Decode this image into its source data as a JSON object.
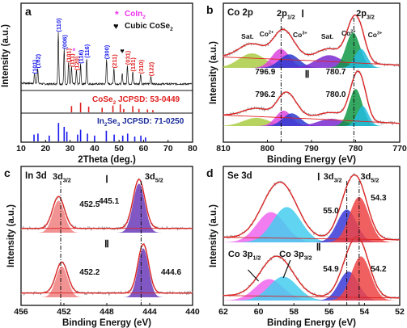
{
  "colors": {
    "black": "#111111",
    "red": "#e02020",
    "blue": "#1a1aee",
    "magenta": "#ee33ee",
    "navy": "#1a2a9a",
    "bg_line": "#e02020",
    "fit_green": "#aacc44",
    "fit_magenta": "#dd44dd",
    "fit_blue": "#2a3ad0",
    "fit_green_dark": "#119944",
    "fit_cyan": "#22bbdd",
    "fit_violet": "#7a2ad0",
    "fit_pink": "#f08080",
    "fit_purple": "#6a3ab8",
    "fit_lightcyan": "#44ccee",
    "fit_lightmagenta": "#ee66ee",
    "fit_blue2": "#3a3ad8",
    "fit_red2": "#ee4444",
    "data_gray": "#999999"
  },
  "chart_data": [
    {
      "id": "a",
      "panel_label": "a",
      "type": "line",
      "xlabel": "2Theta (deg.)",
      "ylabel": "Intensity (a.u.)",
      "xlim": [
        10,
        80
      ],
      "xticks": [
        10,
        20,
        30,
        40,
        50,
        60,
        70,
        80
      ],
      "legend": [
        {
          "marker": "*",
          "text": "CoIn",
          "sub": "2",
          "color": "magenta"
        },
        {
          "marker": "♥",
          "text": "Cubic CoSe",
          "sub": "2",
          "color": "black"
        }
      ],
      "peaks": [
        {
          "x": 15.5,
          "h": 0.18,
          "label": "(101)",
          "color": "blue"
        },
        {
          "x": 16.8,
          "h": 0.28,
          "label": "(102)",
          "color": "blue"
        },
        {
          "x": 25.2,
          "h": 0.92,
          "label": "(110)",
          "color": "blue"
        },
        {
          "x": 27.6,
          "h": 0.62,
          "label": "(006)",
          "color": "blue"
        },
        {
          "x": 29.4,
          "h": 0.38,
          "label": "(101)",
          "color": "red"
        },
        {
          "x": 30.6,
          "h": 0.3,
          "label": "(111)",
          "color": "red"
        },
        {
          "x": 32.6,
          "h": 0.24,
          "label": "(120)",
          "color": "red"
        },
        {
          "x": 34.3,
          "h": 0.36,
          "label": "(116)",
          "color": "blue"
        },
        {
          "x": 36.8,
          "h": 0.46,
          "label": "(116)",
          "color": "blue"
        },
        {
          "x": 44.9,
          "h": 0.44,
          "label": "(300)",
          "color": "blue"
        },
        {
          "x": 47.9,
          "h": 0.28,
          "label": "(211)",
          "color": "red"
        },
        {
          "x": 51.3,
          "h": 0.18,
          "label": "",
          "color": "black"
        },
        {
          "x": 53.4,
          "h": 0.34,
          "label": "(031)",
          "color": "red"
        },
        {
          "x": 55.6,
          "h": 0.22,
          "label": "(131)",
          "color": "red"
        },
        {
          "x": 58.8,
          "h": 0.18,
          "label": "(310)",
          "color": "red"
        },
        {
          "x": 63.0,
          "h": 0.14,
          "label": "(122)",
          "color": "red"
        }
      ],
      "markers": [
        {
          "x": 31.6,
          "symbol": "*",
          "color": "magenta"
        },
        {
          "x": 51.3,
          "symbol": "♥",
          "color": "black"
        }
      ],
      "ref_red": {
        "label": "CoSe",
        "sub": "2",
        "tail": " JCPSD: 53-0449",
        "lines": [
          [
            30.6,
            0.55
          ],
          [
            34.3,
            0.85
          ],
          [
            37.6,
            0.5
          ],
          [
            43.1,
            0.4
          ],
          [
            47.5,
            0.6
          ],
          [
            50.5,
            0.7
          ],
          [
            51.9,
            0.3
          ],
          [
            55.6,
            0.55
          ],
          [
            58.1,
            0.3
          ],
          [
            61.6,
            0.25
          ],
          [
            63.8,
            0.2
          ]
        ]
      },
      "ref_blue": {
        "label": "In",
        "sub": "2",
        "mid": "Se",
        "sub2": "3",
        "tail": " JCPSD: 71-0250",
        "lines": [
          [
            15.3,
            0.35
          ],
          [
            16.9,
            0.4
          ],
          [
            21.5,
            0.3
          ],
          [
            25.3,
            0.95
          ],
          [
            27.6,
            0.75
          ],
          [
            28.7,
            0.5
          ],
          [
            33.1,
            0.35
          ],
          [
            34.3,
            0.6
          ],
          [
            37.1,
            0.4
          ],
          [
            40.0,
            0.3
          ],
          [
            44.8,
            0.55
          ],
          [
            48.0,
            0.35
          ],
          [
            51.5,
            0.3
          ],
          [
            53.5,
            0.4
          ],
          [
            56.4,
            0.25
          ],
          [
            58.9,
            0.3
          ],
          [
            60.8,
            0.2
          ]
        ]
      }
    },
    {
      "id": "b",
      "panel_label": "b",
      "title": "Co 2p",
      "type": "line",
      "xlabel": "Binding Energy (eV)",
      "ylabel": "Intensity (a.u.)",
      "xlim": [
        810,
        770
      ],
      "xticks": [
        810,
        800,
        790,
        780,
        770
      ],
      "labels_top": [
        {
          "text": "Ⅰ",
          "x": 792
        },
        {
          "text": "2p",
          "sub": "1/2",
          "x": 795.8
        },
        {
          "text": "2p",
          "sub": "3/2",
          "x": 777.8
        }
      ],
      "species_labels": [
        {
          "text": "Sat.",
          "x": 804.5,
          "level": 0
        },
        {
          "text": "Co",
          "sup": "2+",
          "x": 800.2,
          "level": 0.3
        },
        {
          "text": "Co",
          "sup": "3+",
          "x": 792.6,
          "level": 0.2
        },
        {
          "text": "Sat.",
          "x": 786.4,
          "level": 0
        },
        {
          "text": "Co",
          "sup": "2+",
          "x": 781.6,
          "level": 0.4
        },
        {
          "text": "Co",
          "sup": "3+",
          "x": 775.6,
          "level": 0.2
        }
      ],
      "upper": {
        "peak_labels": [
          {
            "text": "796.9",
            "x": 796.9
          },
          {
            "text": "780.7",
            "x": 780.7
          }
        ],
        "components": [
          {
            "center": 803.5,
            "height": 0.32,
            "width": 3.0,
            "color": "fit_green"
          },
          {
            "center": 797.0,
            "height": 0.42,
            "width": 2.0,
            "color": "fit_magenta"
          },
          {
            "center": 795.0,
            "height": 0.3,
            "width": 2.2,
            "color": "fit_blue"
          },
          {
            "center": 786.0,
            "height": 0.28,
            "width": 3.0,
            "color": "fit_violet"
          },
          {
            "center": 780.6,
            "height": 0.78,
            "width": 1.6,
            "color": "fit_green_dark"
          },
          {
            "center": 778.8,
            "height": 0.42,
            "width": 1.4,
            "color": "fit_cyan"
          }
        ]
      },
      "lower": {
        "label": "Ⅱ",
        "peak_labels": [
          {
            "text": "796.2",
            "x": 796.2
          },
          {
            "text": "780.0",
            "x": 780.0
          }
        ],
        "components": [
          {
            "center": 802.5,
            "height": 0.18,
            "width": 3.0,
            "color": "fit_green"
          },
          {
            "center": 796.3,
            "height": 0.34,
            "width": 1.8,
            "color": "fit_magenta"
          },
          {
            "center": 794.5,
            "height": 0.28,
            "width": 2.0,
            "color": "fit_blue"
          },
          {
            "center": 785.5,
            "height": 0.16,
            "width": 3.0,
            "color": "fit_violet"
          },
          {
            "center": 780.0,
            "height": 0.82,
            "width": 1.5,
            "color": "fit_green_dark"
          },
          {
            "center": 778.4,
            "height": 0.44,
            "width": 1.3,
            "color": "fit_cyan"
          }
        ]
      },
      "dash_x": [
        796.9,
        780.4
      ]
    },
    {
      "id": "c",
      "panel_label": "c",
      "title": "In 3d",
      "type": "line",
      "xlabel": "Binding Energy (eV)",
      "ylabel": "Intensity (a.u.)",
      "xlim": [
        456,
        440
      ],
      "xticks": [
        456,
        452,
        448,
        444,
        440
      ],
      "labels_top": [
        {
          "text": "3d",
          "sub": "3/2",
          "x": 452.2
        },
        {
          "text": "3d",
          "sub": "5/2",
          "x": 443.6
        }
      ],
      "upper": {
        "label": "Ⅰ",
        "peak_labels": [
          {
            "text": "452.5",
            "x": 452.5
          },
          {
            "text": "445.1",
            "x": 445.1
          }
        ],
        "components": [
          {
            "center": 452.5,
            "height": 0.6,
            "width": 0.55,
            "color": "fit_pink"
          },
          {
            "center": 445.0,
            "height": 0.92,
            "width": 0.55,
            "color": "fit_purple"
          }
        ]
      },
      "lower": {
        "label": "Ⅱ",
        "peak_labels": [
          {
            "text": "452.2",
            "x": 452.2
          },
          {
            "text": "444.6",
            "x": 444.6
          }
        ],
        "components": [
          {
            "center": 452.2,
            "height": 0.58,
            "width": 0.55,
            "color": "fit_pink"
          },
          {
            "center": 444.6,
            "height": 0.92,
            "width": 0.5,
            "color": "fit_purple"
          }
        ]
      },
      "dash_x": [
        452.3,
        444.8
      ]
    },
    {
      "id": "d",
      "panel_label": "d",
      "title": "Se 3d",
      "type": "line",
      "xlabel": "Binding Energy (eV)",
      "ylabel": "Intensity (a.u.)",
      "xlim": [
        62,
        52
      ],
      "xticks": [
        62,
        60,
        58,
        56,
        54,
        52
      ],
      "labels_top": [
        {
          "text": "Ⅰ",
          "x": 56.6
        },
        {
          "text": "3d",
          "sub": "3/2",
          "x": 55.8
        },
        {
          "text": "3d",
          "sub": "5/2",
          "x": 53.7
        }
      ],
      "upper": {
        "peak_labels": [
          {
            "text": "55.0",
            "x": 55.4
          },
          {
            "text": "54.3",
            "x": 53.6
          }
        ],
        "components": [
          {
            "center": 59.3,
            "height": 0.48,
            "width": 0.8,
            "color": "fit_lightmagenta"
          },
          {
            "center": 58.4,
            "height": 0.56,
            "width": 0.8,
            "color": "fit_lightcyan"
          },
          {
            "center": 55.0,
            "height": 0.52,
            "width": 0.55,
            "color": "fit_blue2"
          },
          {
            "center": 54.3,
            "height": 0.72,
            "width": 0.55,
            "color": "fit_red2"
          }
        ]
      },
      "lower": {
        "label": "Ⅱ",
        "peak_labels": [
          {
            "text": "54.9",
            "x": 55.2
          },
          {
            "text": "54.2",
            "x": 53.5
          }
        ],
        "components": [
          {
            "center": 59.4,
            "height": 0.34,
            "width": 0.8,
            "color": "fit_lightmagenta"
          },
          {
            "center": 58.6,
            "height": 0.38,
            "width": 0.8,
            "color": "fit_lightcyan"
          },
          {
            "center": 54.9,
            "height": 0.46,
            "width": 0.55,
            "color": "fit_blue2"
          },
          {
            "center": 54.2,
            "height": 0.7,
            "width": 0.55,
            "color": "fit_red2"
          }
        ]
      },
      "annotations": [
        {
          "text": "Co 3p",
          "sub": "1/2"
        },
        {
          "text": "Co 3p",
          "sub": "3/2"
        }
      ],
      "dash_x": [
        55.0,
        54.3
      ]
    }
  ]
}
